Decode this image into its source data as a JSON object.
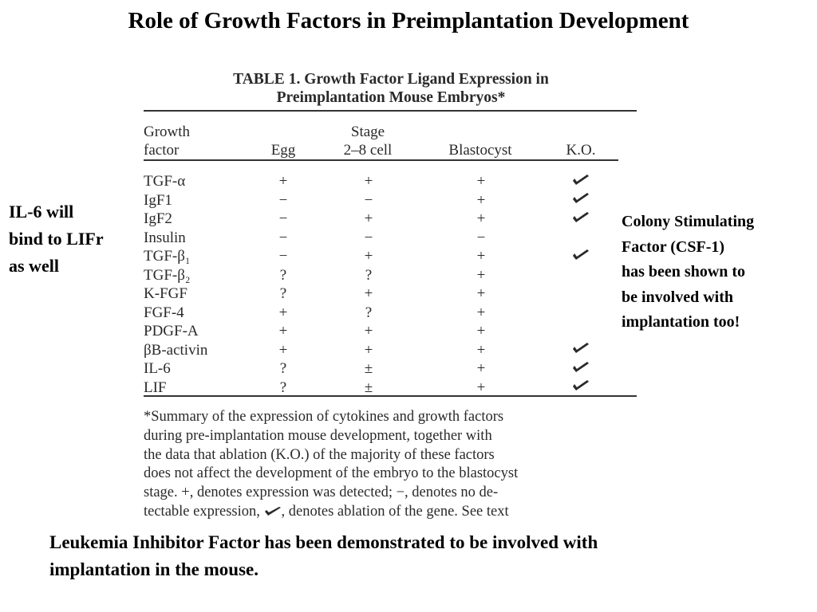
{
  "title": "Role of Growth Factors in Preimplantation Development",
  "left_note": "IL-6 will\nbind to LIFr\nas well",
  "right_note": "Colony Stimulating\nFactor (CSF-1)\nhas been shown to\nbe involved with\nimplantation too!",
  "bottom_note": "Leukemia Inhibitor Factor has been demonstrated to be involved with\nimplantation in the mouse.",
  "table": {
    "caption": "TABLE 1. Growth Factor Ligand Expression in\nPreimplantation Mouse Embryos*",
    "headers": {
      "growth_factor": "Growth\nfactor",
      "egg": "Egg",
      "stage": "Stage\n2–8 cell",
      "blastocyst": "Blastocyst",
      "ko": "K.O."
    },
    "ko_icon": "check-mark-icon",
    "rows": [
      {
        "name": "TGF-α",
        "egg": "+",
        "cell": "+",
        "blast": "+",
        "ko": true
      },
      {
        "name": "IgF1",
        "egg": "−",
        "cell": "−",
        "blast": "+",
        "ko": true
      },
      {
        "name": "IgF2",
        "egg": "−",
        "cell": "+",
        "blast": "+",
        "ko": true
      },
      {
        "name": "Insulin",
        "egg": "−",
        "cell": "−",
        "blast": "−",
        "ko": false
      },
      {
        "name": "TGF-β₁",
        "egg": "−",
        "cell": "+",
        "blast": "+",
        "ko": true
      },
      {
        "name": "TGF-β₂",
        "egg": "?",
        "cell": "?",
        "blast": "+",
        "ko": false
      },
      {
        "name": "K-FGF",
        "egg": "?",
        "cell": "+",
        "blast": "+",
        "ko": false
      },
      {
        "name": "FGF-4",
        "egg": "+",
        "cell": "?",
        "blast": "+",
        "ko": false
      },
      {
        "name": "PDGF-A",
        "egg": "+",
        "cell": "+",
        "blast": "+",
        "ko": false
      },
      {
        "name": "βB-activin",
        "egg": "+",
        "cell": "+",
        "blast": "+",
        "ko": true
      },
      {
        "name": "IL-6",
        "egg": "?",
        "cell": "±",
        "blast": "+",
        "ko": true
      },
      {
        "name": "LIF",
        "egg": "?",
        "cell": "±",
        "blast": "+",
        "ko": true
      }
    ],
    "footnote_part1": "*Summary of the expression of cytokines and growth factors\nduring pre-implantation mouse development, together with\nthe data that ablation (K.O.) of the majority of these factors\ndoes not affect the development of the embryo to the blastocyst\nstage. +, denotes expression was detected; −, denotes no de-\ntectable expression, ",
    "footnote_part2": ", denotes ablation of the gene. See text"
  }
}
